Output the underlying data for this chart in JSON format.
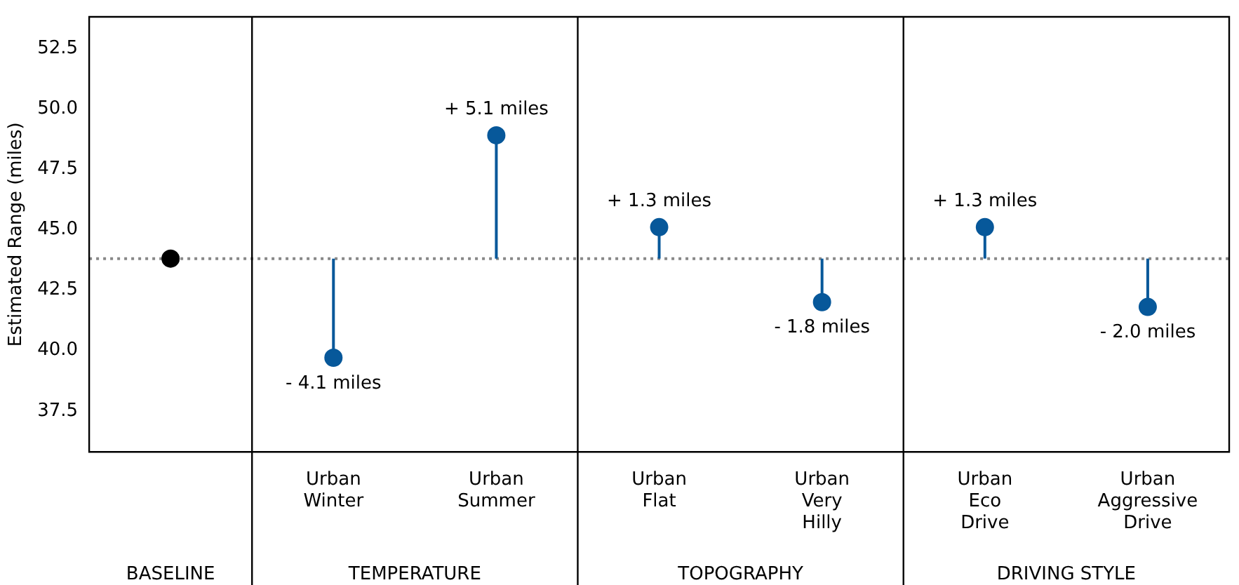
{
  "chart_data": {
    "type": "lollipop",
    "ylabel": "Estimated Range (miles)",
    "categories": [
      null,
      "Urban\nWinter",
      "Urban\nSummer",
      "Urban\nFlat",
      "Urban\nVery\nHilly",
      "Urban\nEco\nDrive",
      "Urban\nAggressive\nDrive"
    ],
    "values": [
      43.8,
      39.7,
      48.9,
      45.1,
      42.0,
      45.1,
      41.8
    ],
    "colors": [
      "#000000",
      "#07589a",
      "#07589a",
      "#07589a",
      "#07589a",
      "#07589a",
      "#07589a"
    ],
    "ylim": [
      35.8,
      53.8
    ],
    "yticks": [
      37.5,
      {
        "value": 40,
        "label": "40.0"
      },
      42.5,
      {
        "value": 45,
        "label": "45.0"
      },
      47.5,
      {
        "value": 50,
        "label": "50.0"
      },
      52.5
    ],
    "ref_lines": [
      {
        "axis": "y",
        "value": 43.8,
        "color": "#888888",
        "line_style": "dotted"
      }
    ],
    "annotations": [
      "BASELINE",
      "TEMPERATURE",
      "TOPOGRAPHY",
      "DRIVING STYLE",
      {
        "text": "- 4.1 miles",
        "x": "Urban\nWinter",
        "y": 39.7
      },
      {
        "text": "+ 5.1 miles",
        "x": "Urban\nSummer",
        "y": 48.9
      },
      {
        "text": "+ 1.3 miles",
        "x": "Urban\nFlat",
        "y": 45.1
      },
      {
        "text": "- 1.8 miles",
        "x": "Urban\nVery\nHilly",
        "y": 42.0
      },
      {
        "text": "+ 1.3 miles",
        "x": "Urban\nEco\nDrive",
        "y": 45.1
      },
      {
        "text": "- 2.0 miles",
        "x": "Urban\nAggressive\nDrive",
        "y": 41.8
      }
    ],
    "marker": "circle",
    "grid": false,
    "legend": false
  }
}
